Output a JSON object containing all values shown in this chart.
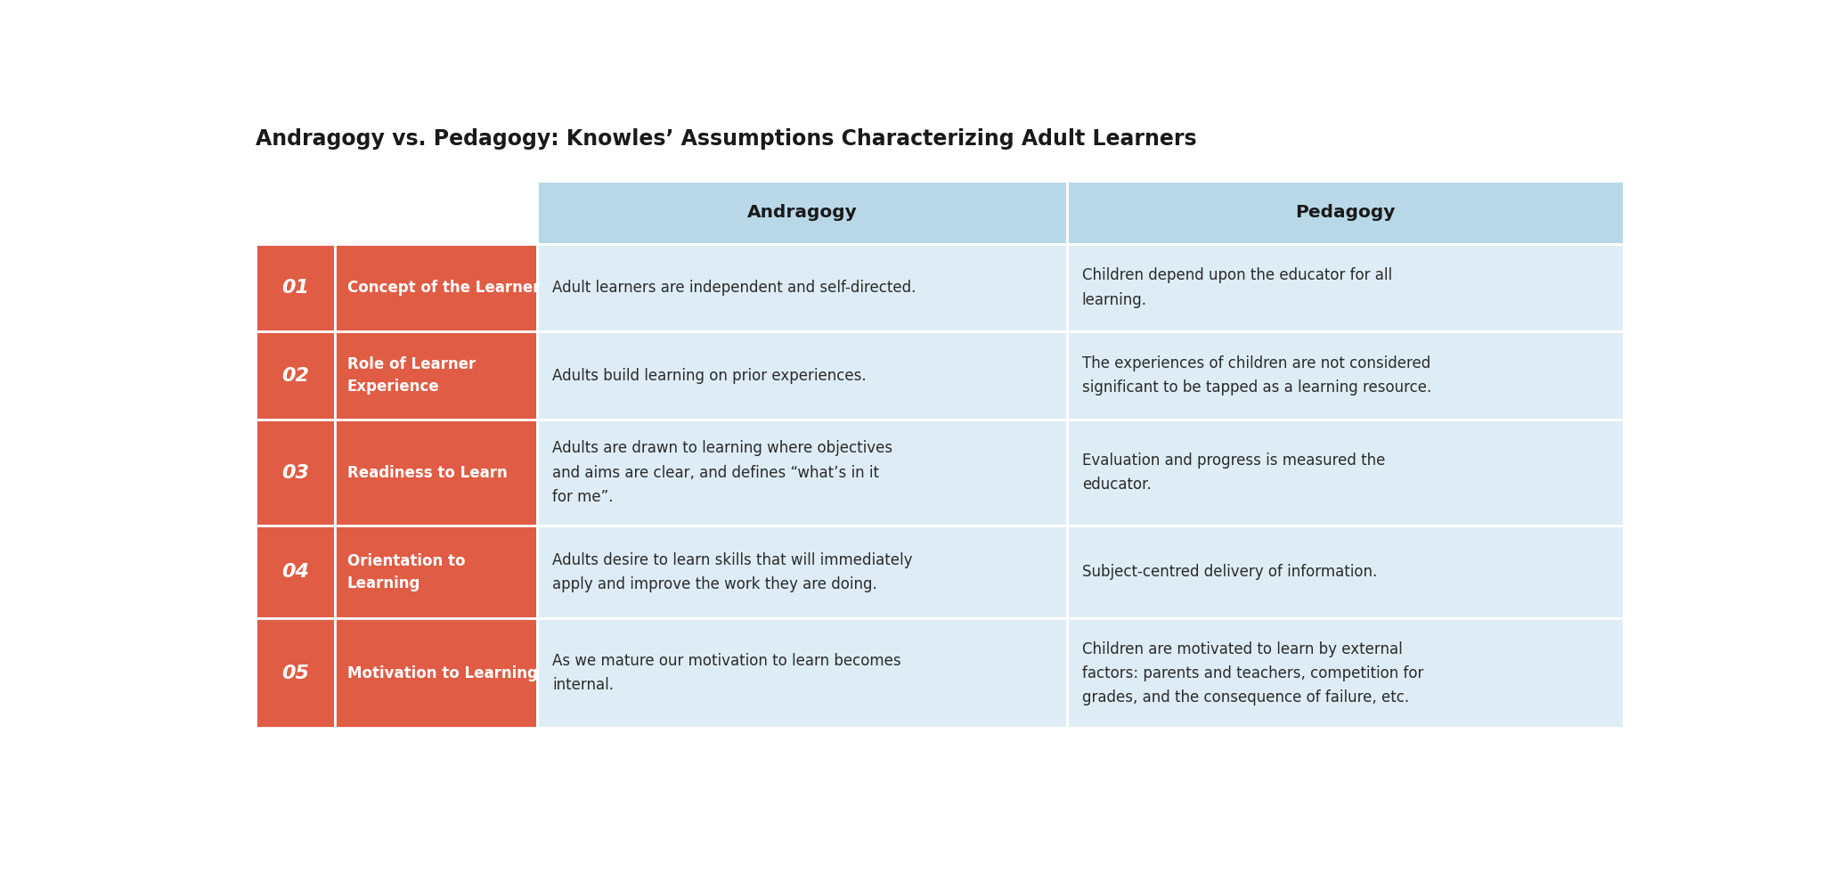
{
  "title": "Andragogy vs. Pedagogy: Knowles’ Assumptions Characterizing Adult Learners",
  "title_fontsize": 17,
  "title_color": "#1a1a1a",
  "background_color": "#ffffff",
  "header_bg_color": "#b8d8e8",
  "row_bg_color": "#deedf5",
  "row_label_bg_color": "#e05c45",
  "row_label_number_color": "#ffffff",
  "row_label_text_color": "#ffffff",
  "body_text_color": "#2a2a2a",
  "col_headers": [
    "Andragogy",
    "Pedagogy"
  ],
  "rows": [
    {
      "number": "01",
      "label": "Concept of the Learner",
      "andragogy": "Adult learners are independent and self-directed.",
      "pedagogy": "Children depend upon the educator for all\nlearning."
    },
    {
      "number": "02",
      "label": "Role of Learner\nExperience",
      "andragogy": "Adults build learning on prior experiences.",
      "pedagogy": "The experiences of children are not considered\nsignificant to be tapped as a learning resource."
    },
    {
      "number": "03",
      "label": "Readiness to Learn",
      "andragogy": "Adults are drawn to learning where objectives\nand aims are clear, and defines “what’s in it\nfor me”.",
      "pedagogy": "Evaluation and progress is measured the\neducator."
    },
    {
      "number": "04",
      "label": "Orientation to\nLearning",
      "andragogy": "Adults desire to learn skills that will immediately\napply and improve the work they are doing.",
      "pedagogy": "Subject-centred delivery of information."
    },
    {
      "number": "05",
      "label": "Motivation to Learning",
      "andragogy": "As we mature our motivation to learn becomes\ninternal.",
      "pedagogy": "Children are motivated to learn by external\nfactors: parents and teachers, competition for\ngrades, and the consequence of failure, etc."
    }
  ]
}
